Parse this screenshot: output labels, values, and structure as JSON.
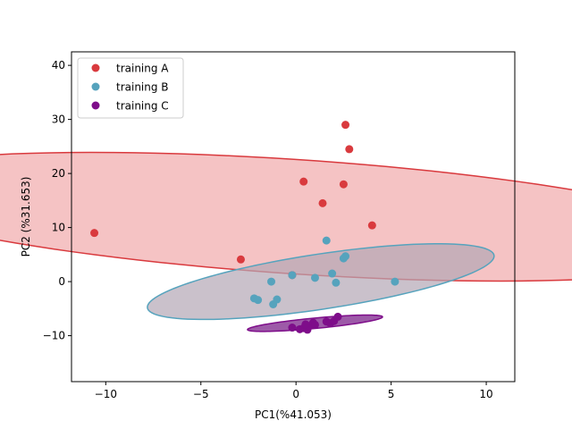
{
  "chart_data": {
    "type": "scatter",
    "xlabel": "PC1(%41.053)",
    "ylabel": "PC2 (%31.653)",
    "xlim": [
      -11.8,
      11.5
    ],
    "ylim": [
      -18.5,
      42.5
    ],
    "xticks": [
      -10,
      -5,
      0,
      5,
      10
    ],
    "yticks": [
      -10,
      0,
      10,
      20,
      30,
      40
    ],
    "xtick_labels": [
      "−10",
      "−5",
      "0",
      "5",
      "10"
    ],
    "ytick_labels": [
      "−10",
      "0",
      "10",
      "20",
      "30",
      "40"
    ],
    "grid": false,
    "legend_position": "top-left",
    "series": [
      {
        "name": "training A",
        "color": "#d93a3e",
        "points": [
          [
            -10.6,
            9.0
          ],
          [
            -2.9,
            4.1
          ],
          [
            -0.2,
            1.2
          ],
          [
            0.4,
            18.5
          ],
          [
            1.4,
            14.5
          ],
          [
            2.5,
            18.0
          ],
          [
            2.6,
            29.0
          ],
          [
            2.8,
            24.5
          ],
          [
            4.0,
            10.4
          ]
        ],
        "ellipse": {
          "cx": 0.0,
          "cy": 12.0,
          "rx": 11.3,
          "ry": 24.5,
          "angle": 1.25,
          "fill": "#f5c3c4",
          "stroke": "#d93a3e"
        }
      },
      {
        "name": "training B",
        "color": "#56a3bd",
        "points": [
          [
            -2.2,
            -3.1
          ],
          [
            -2.0,
            -3.4
          ],
          [
            -1.3,
            0.0
          ],
          [
            -1.2,
            -4.2
          ],
          [
            -1.0,
            -3.3
          ],
          [
            -0.2,
            1.2
          ],
          [
            1.0,
            0.7
          ],
          [
            1.6,
            7.6
          ],
          [
            1.9,
            1.5
          ],
          [
            2.1,
            -0.2
          ],
          [
            2.5,
            4.3
          ],
          [
            2.6,
            4.7
          ],
          [
            5.2,
            0.0
          ]
        ],
        "ellipse": {
          "cx": 1.3,
          "cy": 0.0,
          "rx": 11.0,
          "ry": 4.75,
          "angle": 0.67,
          "fill": "#b4a7b5",
          "stroke": "#56a3bd"
        }
      },
      {
        "name": "training C",
        "color": "#7e0d8a",
        "points": [
          [
            -0.2,
            -8.5
          ],
          [
            0.2,
            -8.8
          ],
          [
            0.4,
            -8.6
          ],
          [
            0.6,
            -8.9
          ],
          [
            0.7,
            -8.2
          ],
          [
            0.9,
            -7.6
          ],
          [
            1.0,
            -8.0
          ],
          [
            1.6,
            -7.4
          ],
          [
            1.8,
            -7.7
          ],
          [
            2.0,
            -7.3
          ],
          [
            2.2,
            -6.5
          ],
          [
            0.5,
            -7.9
          ]
        ],
        "ellipse": {
          "cx": 1.0,
          "cy": -7.7,
          "rx": 3.8,
          "ry": 1.0,
          "angle": 0.38,
          "fill": "#9d5aa8",
          "stroke": "#7e0d8a"
        }
      }
    ]
  }
}
